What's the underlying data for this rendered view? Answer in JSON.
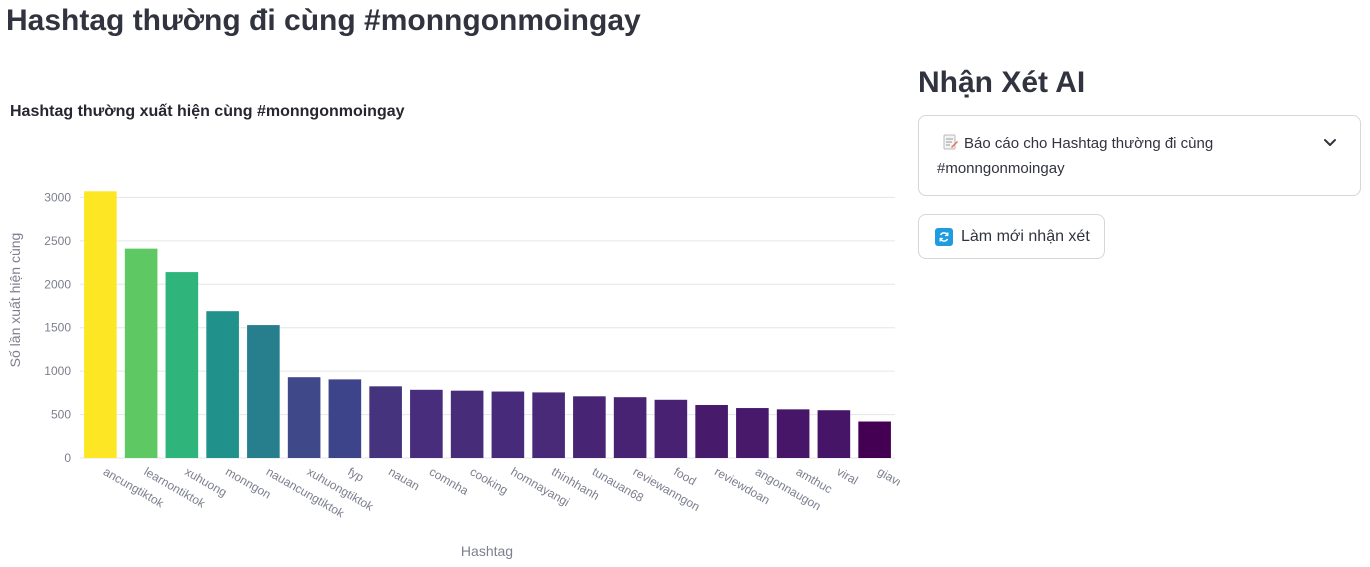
{
  "page": {
    "title": "Hashtag thường đi cùng #monngonmoingay"
  },
  "right_panel": {
    "heading": "Nhận Xét AI",
    "expander_label": "Báo cáo cho Hashtag thường đi cùng #monngonmoingay",
    "refresh_button_label": "Làm mới nhận xét"
  },
  "chart_data": {
    "type": "bar",
    "title": "Hashtag thường xuất hiện cùng #monngonmoingay",
    "xlabel": "Hashtag",
    "ylabel": "Số lần xuất hiện cùng",
    "ylim": [
      0,
      3200
    ],
    "yticks": [
      0,
      500,
      1000,
      1500,
      2000,
      2500,
      3000
    ],
    "grid": true,
    "colorscale": "viridis",
    "categories": [
      "ancungtiktok",
      "learnontiktok",
      "xuhuong",
      "monngon",
      "nauancungtiktok",
      "xuhuongtiktok",
      "fyp",
      "nauan",
      "comnha",
      "cooking",
      "homnayangi",
      "thinhhanh",
      "tunauan68",
      "reviewanngon",
      "food",
      "reviewdoan",
      "angonnaugon",
      "amthuc",
      "viral",
      "giavi"
    ],
    "values": [
      3070,
      2410,
      2140,
      1690,
      1530,
      930,
      905,
      825,
      785,
      775,
      765,
      755,
      710,
      700,
      670,
      610,
      575,
      560,
      550,
      420
    ],
    "colors": [
      "#fde725",
      "#5ec962",
      "#2fb47c",
      "#21918c",
      "#277f8e",
      "#3f4889",
      "#3e4489",
      "#46337e",
      "#472d7b",
      "#472c7a",
      "#472b7a",
      "#482a79",
      "#482475",
      "#482374",
      "#482173",
      "#481a6c",
      "#48186a",
      "#481668",
      "#471567",
      "#440154"
    ]
  }
}
